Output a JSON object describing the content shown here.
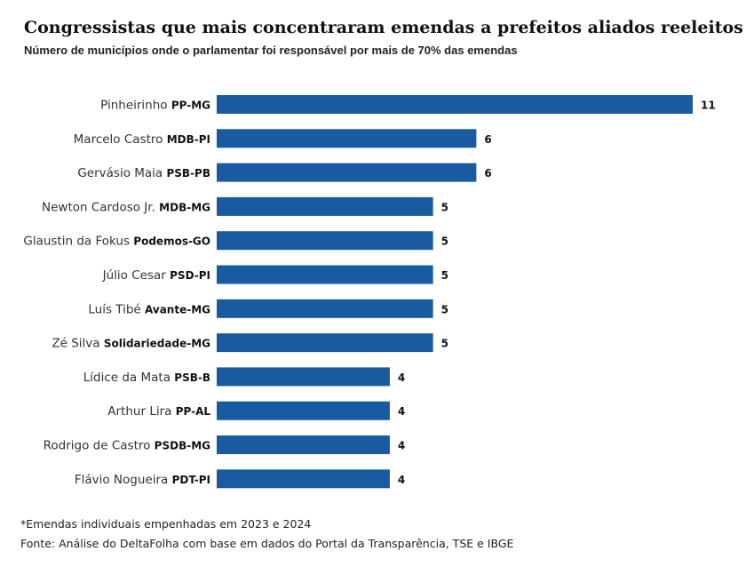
{
  "chart_data": {
    "type": "bar",
    "orientation": "horizontal",
    "title": "Congressistas que mais concentraram emendas a prefeitos aliados reeleitos",
    "subtitle": "Número de municípios onde o parlamentar foi responsável por mais de 70% das emendas",
    "categories": [
      {
        "name": "Pinheirinho",
        "party": "PP-MG"
      },
      {
        "name": "Marcelo Castro",
        "party": "MDB-PI"
      },
      {
        "name": "Gervásio Maia",
        "party": "PSB-PB"
      },
      {
        "name": "Newton Cardoso Jr.",
        "party": "MDB-MG"
      },
      {
        "name": "Glaustin da Fokus",
        "party": "Podemos-GO"
      },
      {
        "name": "Júlio Cesar",
        "party": "PSD-PI"
      },
      {
        "name": "Luís Tibé",
        "party": "Avante-MG"
      },
      {
        "name": "Zé Silva",
        "party": "Solidariedade-MG"
      },
      {
        "name": "Lídice da Mata",
        "party": "PSB-B"
      },
      {
        "name": "Arthur Lira",
        "party": "PP-AL"
      },
      {
        "name": "Rodrigo de Castro",
        "party": "PSDB-MG"
      },
      {
        "name": "Flávio Nogueira",
        "party": "PDT-PI"
      }
    ],
    "values": [
      11,
      6,
      6,
      5,
      5,
      5,
      5,
      5,
      4,
      4,
      4,
      4
    ],
    "xlim": [
      0,
      11
    ],
    "grid": false,
    "legend": "none",
    "bar_color": "#1a5aa0"
  },
  "footnote": "*Emendas individuais empenhadas em 2023 e 2024",
  "source": "Fonte: Análise do DeltaFolha com base em dados do Portal da Transparência, TSE e IBGE"
}
